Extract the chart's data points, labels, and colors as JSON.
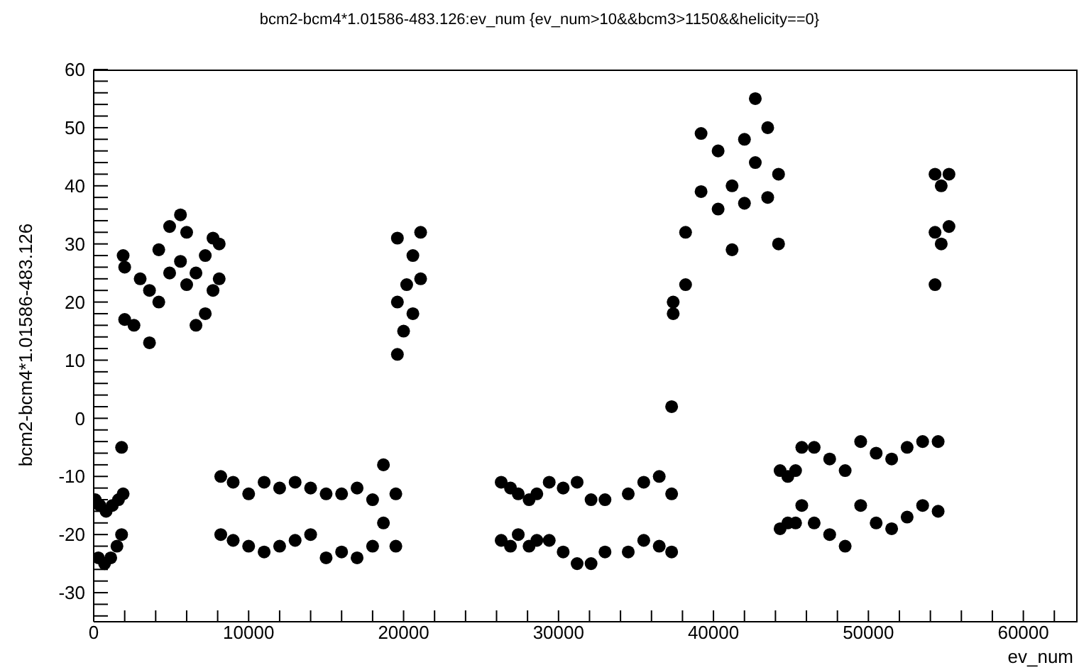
{
  "chart_data": {
    "type": "scatter",
    "title": "bcm2-bcm4*1.01586-483.126:ev_num {ev_num>10&&bcm3>1150&&helicity==0}",
    "xlabel": "ev_num",
    "ylabel": "bcm2-bcm4*1.01586-483.126",
    "series": [
      {
        "color": "#000000",
        "x": [
          100,
          400,
          800,
          1200,
          1600,
          1900,
          300,
          700,
          1100,
          1500,
          1800,
          1800,
          1900,
          2000,
          2000,
          2600,
          3000,
          3600,
          3600,
          4200,
          4200,
          4900,
          4900,
          5600,
          5600,
          6000,
          6000,
          6600,
          6600,
          7200,
          7200,
          7700,
          7700,
          8100,
          8100,
          19600,
          19600,
          20000,
          20200,
          20600,
          20600,
          21100,
          21100,
          19600,
          8200,
          8200,
          9000,
          9000,
          10000,
          10000,
          11000,
          11000,
          12000,
          12000,
          13000,
          13000,
          14000,
          14000,
          15000,
          15000,
          16000,
          16000,
          17000,
          17000,
          18000,
          18000,
          18700,
          18700,
          19500,
          19500,
          26300,
          26300,
          26900,
          26900,
          27400,
          27400,
          28100,
          28100,
          28600,
          28600,
          29400,
          29400,
          30300,
          30300,
          31200,
          31200,
          32100,
          32100,
          33000,
          33000,
          34500,
          34500,
          35500,
          35500,
          36500,
          36500,
          37300,
          37300,
          37300,
          37400,
          37400,
          38200,
          38200,
          39200,
          39200,
          40300,
          40300,
          41200,
          41200,
          42000,
          42000,
          42700,
          42700,
          43500,
          43500,
          44200,
          44200,
          44300,
          44300,
          44800,
          44800,
          45300,
          45300,
          45700,
          45700,
          46500,
          46500,
          47500,
          47500,
          48500,
          48500,
          49500,
          49500,
          50500,
          50500,
          51500,
          51500,
          52500,
          52500,
          53500,
          53500,
          54500,
          54500,
          54300,
          54300,
          54700,
          54700,
          55200,
          55200,
          54300
        ],
        "values": [
          -14,
          -15,
          -16,
          -15,
          -14,
          -13,
          -24,
          -25,
          -24,
          -22,
          -20,
          -5,
          28,
          17,
          26,
          16,
          24,
          13,
          22,
          20,
          29,
          25,
          33,
          27,
          35,
          23,
          32,
          16,
          25,
          18,
          28,
          22,
          31,
          24,
          30,
          31,
          20,
          15,
          23,
          18,
          28,
          24,
          32,
          11,
          -10,
          -20,
          -11,
          -21,
          -13,
          -22,
          -11,
          -23,
          -12,
          -22,
          -11,
          -21,
          -12,
          -20,
          -13,
          -24,
          -13,
          -23,
          -12,
          -24,
          -14,
          -22,
          -8,
          -18,
          -13,
          -22,
          -11,
          -21,
          -12,
          -22,
          -13,
          -20,
          -14,
          -22,
          -13,
          -21,
          -11,
          -21,
          -12,
          -23,
          -11,
          -25,
          -14,
          -25,
          -14,
          -23,
          -13,
          -23,
          -11,
          -21,
          -10,
          -22,
          -13,
          -23,
          2,
          20,
          18,
          32,
          23,
          49,
          39,
          46,
          36,
          40,
          29,
          48,
          37,
          55,
          44,
          50,
          38,
          42,
          30,
          -9,
          -19,
          -10,
          -18,
          -9,
          -18,
          -5,
          -15,
          -5,
          -18,
          -7,
          -20,
          -9,
          -22,
          -4,
          -15,
          -6,
          -18,
          -7,
          -19,
          -5,
          -17,
          -4,
          -15,
          -4,
          -16,
          32,
          42,
          30,
          40,
          33,
          42,
          23
        ]
      }
    ],
    "xlim": [
      0,
      63500
    ],
    "ylim": [
      -35,
      60
    ],
    "xticks": [
      0,
      {
        "value": 2000,
        "label": null
      },
      {
        "value": 4000,
        "label": null
      },
      {
        "value": 6000,
        "label": null
      },
      {
        "value": 8000,
        "label": null
      },
      10000,
      {
        "value": 12000,
        "label": null
      },
      {
        "value": 14000,
        "label": null
      },
      {
        "value": 16000,
        "label": null
      },
      {
        "value": 18000,
        "label": null
      },
      20000,
      {
        "value": 22000,
        "label": null
      },
      {
        "value": 24000,
        "label": null
      },
      {
        "value": 26000,
        "label": null
      },
      {
        "value": 28000,
        "label": null
      },
      30000,
      {
        "value": 32000,
        "label": null
      },
      {
        "value": 34000,
        "label": null
      },
      {
        "value": 36000,
        "label": null
      },
      {
        "value": 38000,
        "label": null
      },
      40000,
      {
        "value": 42000,
        "label": null
      },
      {
        "value": 44000,
        "label": null
      },
      {
        "value": 46000,
        "label": null
      },
      {
        "value": 48000,
        "label": null
      },
      50000,
      {
        "value": 52000,
        "label": null
      },
      {
        "value": 54000,
        "label": null
      },
      {
        "value": 56000,
        "label": null
      },
      {
        "value": 58000,
        "label": null
      },
      60000,
      {
        "value": 62000,
        "label": null
      }
    ],
    "yticks": [
      {
        "value": -34,
        "label": null
      },
      {
        "value": -32,
        "label": null
      },
      -30,
      {
        "value": -28,
        "label": null
      },
      {
        "value": -26,
        "label": null
      },
      {
        "value": -24,
        "label": null
      },
      {
        "value": -22,
        "label": null
      },
      -20,
      {
        "value": -18,
        "label": null
      },
      {
        "value": -16,
        "label": null
      },
      {
        "value": -14,
        "label": null
      },
      {
        "value": -12,
        "label": null
      },
      -10,
      {
        "value": -8,
        "label": null
      },
      {
        "value": -6,
        "label": null
      },
      {
        "value": -4,
        "label": null
      },
      {
        "value": -2,
        "label": null
      },
      0,
      {
        "value": 2,
        "label": null
      },
      {
        "value": 4,
        "label": null
      },
      {
        "value": 6,
        "label": null
      },
      {
        "value": 8,
        "label": null
      },
      10,
      {
        "value": 12,
        "label": null
      },
      {
        "value": 14,
        "label": null
      },
      {
        "value": 16,
        "label": null
      },
      {
        "value": 18,
        "label": null
      },
      20,
      {
        "value": 22,
        "label": null
      },
      {
        "value": 24,
        "label": null
      },
      {
        "value": 26,
        "label": null
      },
      {
        "value": 28,
        "label": null
      },
      30,
      {
        "value": 32,
        "label": null
      },
      {
        "value": 34,
        "label": null
      },
      {
        "value": 36,
        "label": null
      },
      {
        "value": 38,
        "label": null
      },
      40,
      {
        "value": 42,
        "label": null
      },
      {
        "value": 44,
        "label": null
      },
      {
        "value": 46,
        "label": null
      },
      {
        "value": 48,
        "label": null
      },
      50,
      {
        "value": 52,
        "label": null
      },
      {
        "value": 54,
        "label": null
      },
      {
        "value": 56,
        "label": null
      },
      {
        "value": 58,
        "label": null
      },
      60
    ],
    "grid": false,
    "legend": false,
    "marker": "circle"
  }
}
